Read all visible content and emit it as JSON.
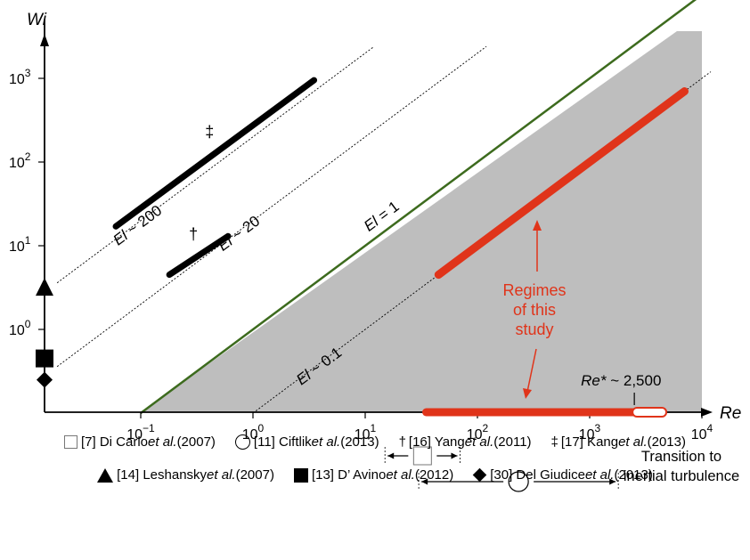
{
  "chart_data": {
    "type": "scatter",
    "title": "",
    "xlabel": "Re",
    "ylabel": "Wi",
    "x_scale": "log",
    "y_scale": "log",
    "xlim": [
      0.018,
      20000
    ],
    "ylim": [
      0.04,
      20000
    ],
    "x_ticks": [
      0.1,
      1,
      10,
      100,
      1000,
      10000
    ],
    "x_tick_labels": [
      {
        "base": "10",
        "exp": "−1"
      },
      {
        "base": "10",
        "exp": "0"
      },
      {
        "base": "10",
        "exp": "1"
      },
      {
        "base": "10",
        "exp": "2"
      },
      {
        "base": "10",
        "exp": "3"
      },
      {
        "base": "10",
        "exp": "4"
      }
    ],
    "y_ticks": [
      1,
      10,
      100,
      1000
    ],
    "y_tick_labels": [
      {
        "base": "10",
        "exp": "0"
      },
      {
        "base": "10",
        "exp": "1"
      },
      {
        "base": "10",
        "exp": "2"
      },
      {
        "base": "10",
        "exp": "3"
      }
    ],
    "gray_region": {
      "x_from": 0.1,
      "x_to": 10000,
      "condition": "El < 1"
    },
    "el_lines": [
      {
        "label": "El ~ 200",
        "el": 200,
        "x_from": 0.018,
        "x_to": 12,
        "style": "dotted"
      },
      {
        "label": "El ~ 20",
        "el": 20,
        "x_from": 0.018,
        "x_to": 120,
        "style": "dotted"
      },
      {
        "label": "El = 1",
        "el": 1,
        "x_from": 0.1,
        "x_to": 13000,
        "style": "solid-arrow",
        "color": "#3d6b1e"
      },
      {
        "label": "El ~ 0.1",
        "el": 0.1,
        "x_from": 1,
        "x_to": 12000,
        "style": "dotted"
      }
    ],
    "series": [
      {
        "name": "[17] Kang et al. (2013)",
        "symbol": "‡",
        "type": "segment",
        "x": [
          0.06,
          3.5
        ],
        "y": [
          17,
          950
        ],
        "color": "#000000"
      },
      {
        "name": "[16] Yang et al. (2011)",
        "symbol": "†",
        "type": "segment",
        "x": [
          0.18,
          0.6
        ],
        "y": [
          4.5,
          13
        ],
        "color": "#000000"
      },
      {
        "name": "Regimes of this study",
        "type": "segment",
        "x": [
          45,
          7000
        ],
        "y": [
          4.5,
          700
        ],
        "color": "#e0341a"
      },
      {
        "name": "[14] Leshansky et al. (2007)",
        "symbol": "triangle",
        "x": 0.018,
        "y": 3.0
      },
      {
        "name": "[13] D' Avino et al. (2012)",
        "symbol": "square",
        "x": 0.018,
        "y": 0.45
      },
      {
        "name": "[30] Del Giudice et al. (2013)",
        "symbol": "diamond",
        "x": 0.018,
        "y": 0.25
      }
    ],
    "re_axis_range": {
      "x_from": 35,
      "x_to": 2500,
      "extension_to": 5000,
      "color": "#e0341a"
    },
    "re_star": {
      "label": "Re* ~ 2,500",
      "value": 2500
    },
    "range_markers": [
      {
        "name": "[7] Di Carlo et al. (2007)",
        "symbol": "open-square",
        "x_from": 15,
        "x_to": 70
      },
      {
        "name": "[11] Ciftlik et al. (2013)",
        "symbol": "open-circle",
        "x_from": 30,
        "x_to": 1800
      }
    ],
    "annotations": {
      "regimes": [
        "Regimes",
        "of this",
        "study"
      ],
      "transition": [
        "Transition to",
        "inertial turbulence"
      ],
      "dagger": "†",
      "ddagger": "‡"
    },
    "grid": false,
    "legend_placement": "bottom"
  },
  "legend": {
    "row1": [
      {
        "symbol": "square-open",
        "ref": "[7] Di Carlo ",
        "etal": "et al.",
        "year": " (2007)"
      },
      {
        "symbol": "circle-open",
        "ref": "[11] Ciftlik ",
        "etal": "et al.",
        "year": " (2013)"
      },
      {
        "symbol": "dagger",
        "glyph": "†",
        "ref": "[16] Yang ",
        "etal": "et al.",
        "year": " (2011)"
      },
      {
        "symbol": "ddagger",
        "glyph": "‡",
        "ref": "[17] Kang ",
        "etal": "et al.",
        "year": " (2013)"
      }
    ],
    "row2": [
      {
        "symbol": "triangle-filled",
        "ref": "[14] Leshansky ",
        "etal": "et al.",
        "year": " (2007)"
      },
      {
        "symbol": "square-filled",
        "ref": "[13] D’ Avino ",
        "etal": "et al.",
        "year": " (2012)"
      },
      {
        "symbol": "diamond-filled",
        "ref": "[30] Del Giudice ",
        "etal": "et al.",
        "year": " (2013)"
      }
    ]
  },
  "colors": {
    "region": "#bebebe",
    "study": "#e0341a",
    "el1": "#3d6b1e",
    "ink": "#000000"
  }
}
